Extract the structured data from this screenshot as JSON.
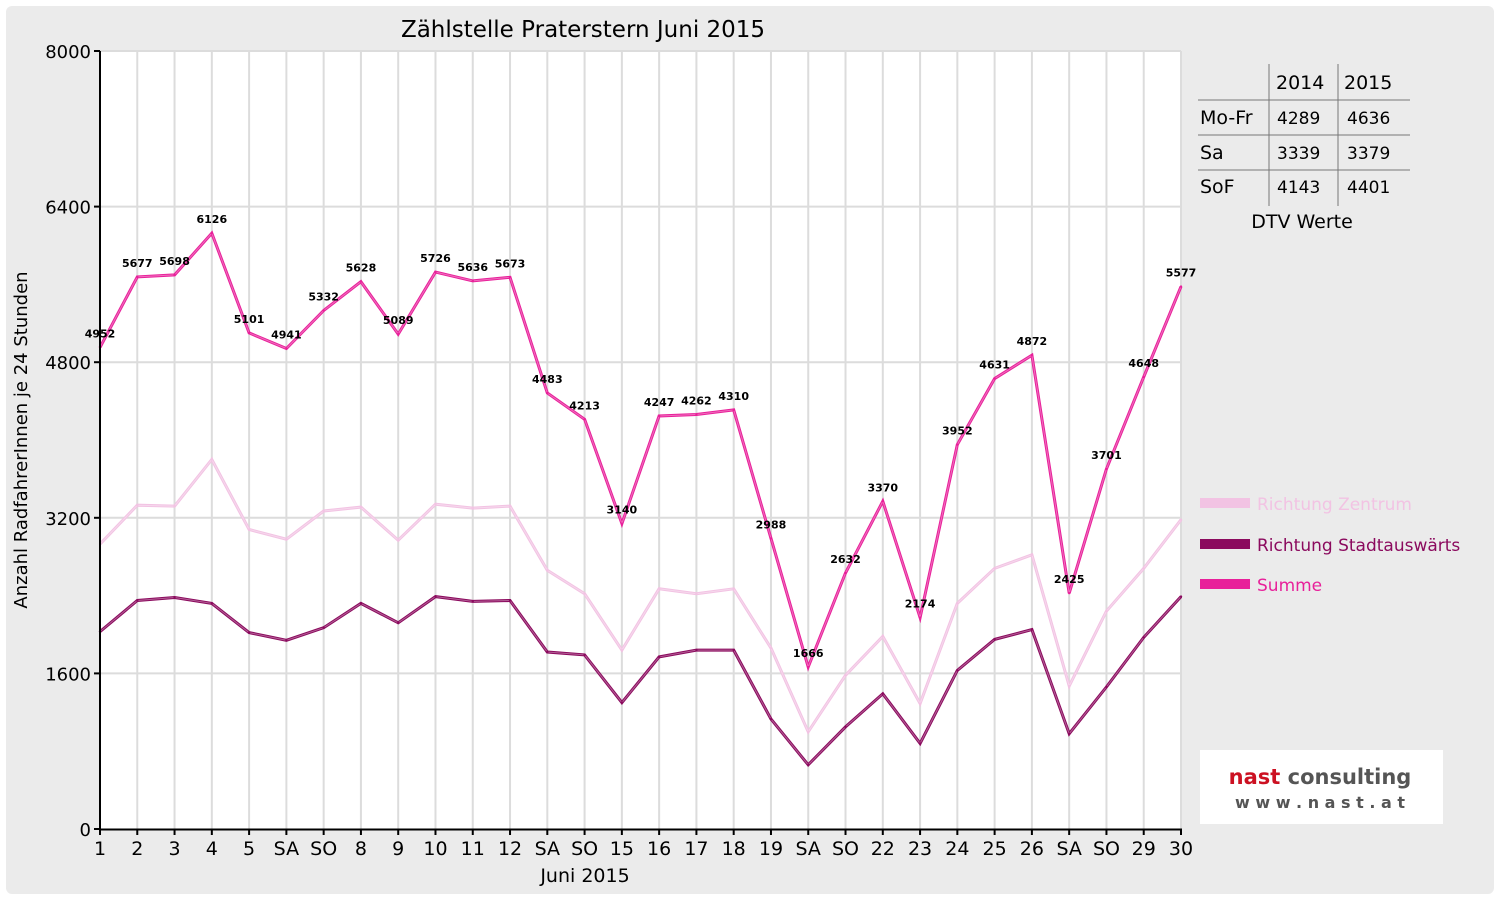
{
  "chart_data": {
    "type": "line",
    "title": "Zählstelle Praterstern Juni 2015",
    "xlabel": "Juni 2015",
    "ylabel": "Anzahl RadfahrerInnen je 24 Stunden",
    "ylim": [
      0,
      8000
    ],
    "yticks": [
      0,
      1600,
      3200,
      4800,
      6400,
      8000
    ],
    "grid": true,
    "legend_position": "right",
    "categories": [
      "1",
      "2",
      "3",
      "4",
      "5",
      "SA",
      "SO",
      "8",
      "9",
      "10",
      "11",
      "12",
      "SA",
      "SO",
      "15",
      "16",
      "17",
      "18",
      "19",
      "SA",
      "SO",
      "22",
      "23",
      "24",
      "25",
      "26",
      "SA",
      "SO",
      "29",
      "30"
    ],
    "highlight_categories": [
      "4",
      "SO"
    ],
    "highlight_color": "#ff0000",
    "series": [
      {
        "name": "Richtung Zentrum",
        "color": "#f2c3e3",
        "values": [
          2930,
          3330,
          3320,
          3800,
          3080,
          2980,
          3270,
          3310,
          2970,
          3340,
          3300,
          3320,
          2660,
          2420,
          1840,
          2470,
          2420,
          2470,
          1860,
          1000,
          1580,
          1980,
          1290,
          2320,
          2680,
          2820,
          1470,
          2240,
          2680,
          3180
        ]
      },
      {
        "name": "Richtung Stadtauswärts",
        "color": "#8b0a5e",
        "values": [
          2030,
          2350,
          2380,
          2320,
          2020,
          1940,
          2070,
          2320,
          2120,
          2390,
          2340,
          2350,
          1820,
          1790,
          1300,
          1770,
          1840,
          1840,
          1130,
          660,
          1050,
          1390,
          880,
          1630,
          1950,
          2050,
          980,
          1460,
          1970,
          2390
        ]
      },
      {
        "name": "Summe",
        "color": "#e8209a",
        "values": [
          4952,
          5677,
          5698,
          6126,
          5101,
          4941,
          5332,
          5628,
          5089,
          5726,
          5636,
          5673,
          4483,
          4213,
          3140,
          4247,
          4262,
          4310,
          2988,
          1666,
          2632,
          3370,
          2174,
          3952,
          4631,
          4872,
          2425,
          3701,
          4648,
          5577
        ],
        "data_labels": true
      }
    ]
  },
  "dtv_table": {
    "caption": "DTV Werte",
    "columns": [
      "2014",
      "2015"
    ],
    "rows": [
      {
        "label": "Mo-Fr",
        "v2014": "4289",
        "v2015": "4636"
      },
      {
        "label": "Sa",
        "v2014": "3339",
        "v2015": "3379"
      },
      {
        "label": "SoF",
        "v2014": "4143",
        "v2015": "4401"
      }
    ]
  },
  "logo": {
    "name": "nast consulting",
    "url": "w w w . n a s t . a t",
    "brand_red": "#cc1122",
    "brand_gray": "#555555"
  }
}
